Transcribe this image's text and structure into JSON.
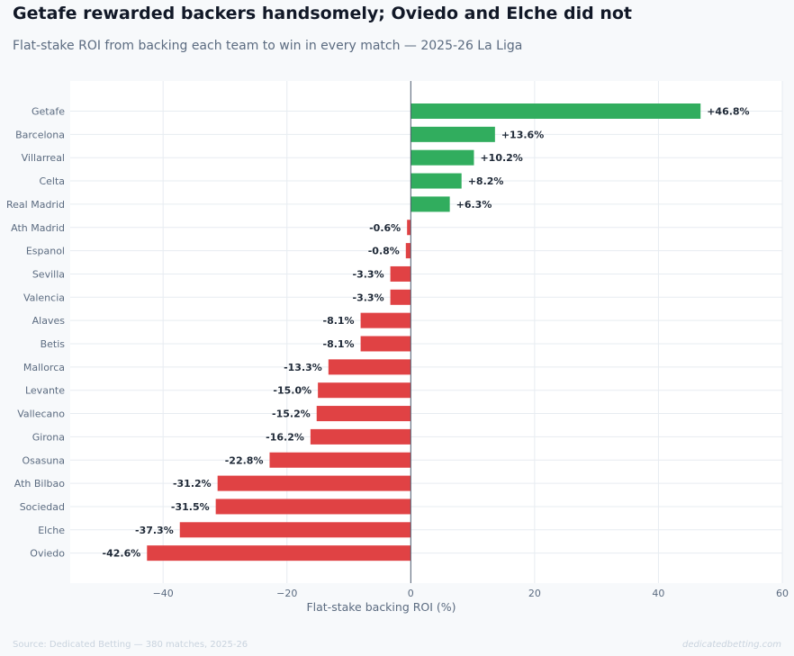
{
  "title": "Getafe rewarded backers handsomely; Oviedo and Elche did not",
  "subtitle": "Flat-stake ROI from backing each team to win in every match — 2025-26 La Liga",
  "source": "Source: Dedicated Betting — 380 matches, 2025-26",
  "watermark": "dedicatedbetting.com",
  "colors": {
    "positive": "#31ad5e",
    "negative": "#e04244",
    "zero_line": "#4b5a6e",
    "grid": "#e7ecf1",
    "plot_bg": "#ffffff"
  },
  "chart_data": {
    "type": "bar",
    "orientation": "horizontal",
    "categories": [
      "Getafe",
      "Barcelona",
      "Villarreal",
      "Celta",
      "Real Madrid",
      "Ath Madrid",
      "Espanol",
      "Sevilla",
      "Valencia",
      "Alaves",
      "Betis",
      "Mallorca",
      "Levante",
      "Vallecano",
      "Girona",
      "Osasuna",
      "Ath Bilbao",
      "Sociedad",
      "Elche",
      "Oviedo"
    ],
    "values": [
      46.8,
      13.6,
      10.2,
      8.2,
      6.3,
      -0.6,
      -0.8,
      -3.3,
      -3.3,
      -8.1,
      -8.1,
      -13.3,
      -15.0,
      -15.2,
      -16.2,
      -22.8,
      -31.2,
      -31.5,
      -37.3,
      -42.6
    ],
    "value_labels": [
      "+46.8%",
      "+13.6%",
      "+10.2%",
      "+8.2%",
      "+6.3%",
      "-0.6%",
      "-0.8%",
      "-3.3%",
      "-3.3%",
      "-8.1%",
      "-8.1%",
      "-13.3%",
      "-15.0%",
      "-15.2%",
      "-16.2%",
      "-22.8%",
      "-31.2%",
      "-31.5%",
      "-37.3%",
      "-42.6%"
    ],
    "xlabel": "Flat-stake backing ROI (%)",
    "xlim": [
      -55,
      60
    ],
    "xticks": [
      -40,
      -20,
      0,
      20,
      40,
      60
    ],
    "xtick_labels": [
      "−40",
      "−20",
      "0",
      "20",
      "40",
      "60"
    ],
    "grid": true
  }
}
